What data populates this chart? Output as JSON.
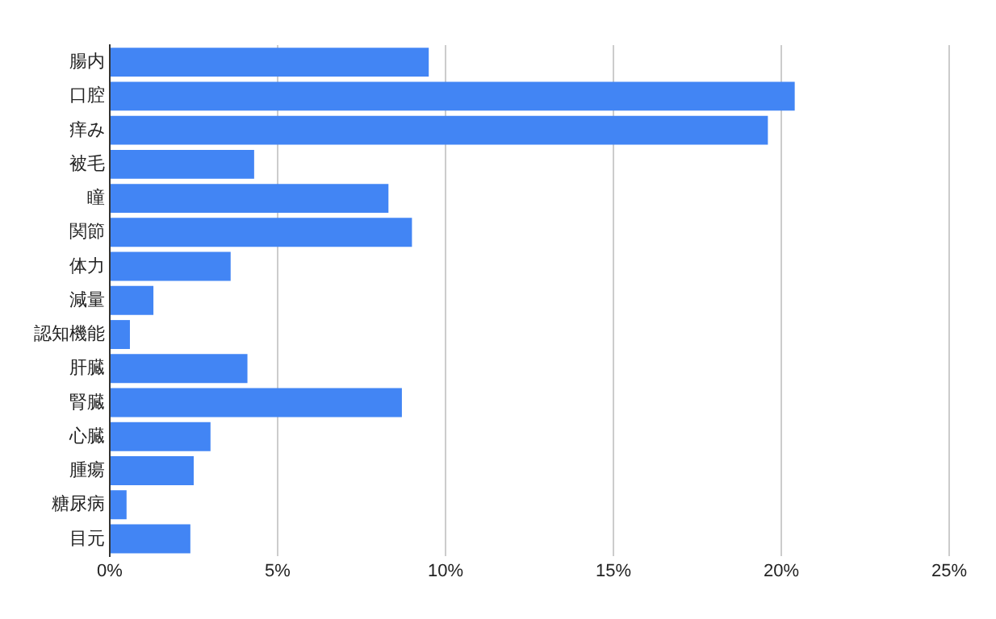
{
  "chart_data": {
    "type": "bar",
    "orientation": "horizontal",
    "categories": [
      "腸内",
      "口腔",
      "痒み",
      "被毛",
      "瞳",
      "関節",
      "体力",
      "減量",
      "認知機能",
      "肝臓",
      "腎臓",
      "心臓",
      "腫瘍",
      "糖尿病",
      "目元"
    ],
    "values": [
      9.5,
      20.4,
      19.6,
      4.3,
      8.3,
      9.0,
      3.6,
      1.3,
      0.6,
      4.1,
      8.7,
      3.0,
      2.5,
      0.5,
      2.4
    ],
    "color": "#4285f4",
    "xlim": [
      0,
      25
    ],
    "xticks": [
      {
        "value": 0,
        "label": "0%"
      },
      {
        "value": 5,
        "label": "5%"
      },
      {
        "value": 10,
        "label": "10%"
      },
      {
        "value": 15,
        "label": "15%"
      },
      {
        "value": 20,
        "label": "20%"
      },
      {
        "value": 25,
        "label": "25%"
      }
    ],
    "grid": "x",
    "legend": false
  }
}
